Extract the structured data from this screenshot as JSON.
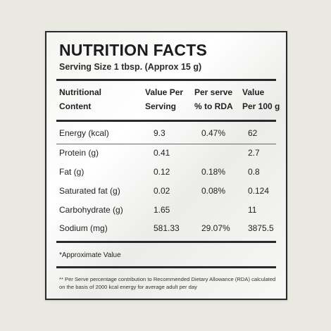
{
  "panel": {
    "title": "NUTRITION FACTS",
    "serving_size": "Serving Size  1 tbsp. (Approx 15 g)"
  },
  "table": {
    "headers": [
      {
        "line1": "Nutritional",
        "line2": "Content"
      },
      {
        "line1": "Value Per",
        "line2": "Serving"
      },
      {
        "line1": "Per serve",
        "line2": "% to RDA"
      },
      {
        "line1": "Value",
        "line2": "Per 100 g"
      }
    ],
    "rows": [
      {
        "nutrient": "Energy (kcal)",
        "per_serving": "9.3",
        "rda": "0.47%",
        "per_100g": "62"
      },
      {
        "nutrient": "Protein (g)",
        "per_serving": "0.41",
        "rda": "",
        "per_100g": "2.7"
      },
      {
        "nutrient": "Fat (g)",
        "per_serving": "0.12",
        "rda": "0.18%",
        "per_100g": "0.8"
      },
      {
        "nutrient": "Saturated fat (g)",
        "per_serving": "0.02",
        "rda": "0.08%",
        "per_100g": "0.124"
      },
      {
        "nutrient": "Carbohydrate (g)",
        "per_serving": "1.65",
        "rda": "",
        "per_100g": "11"
      },
      {
        "nutrient": "Sodium (mg)",
        "per_serving": "581.33",
        "rda": "29.07%",
        "per_100g": "3875.5"
      }
    ]
  },
  "notes": {
    "approx": "*Approximate Value",
    "footnote": "** Per Serve percentage contribution to Recommended Dietary Allowance (RDA) calculated on the basis of 2000 kcal energy for average adult per day"
  }
}
